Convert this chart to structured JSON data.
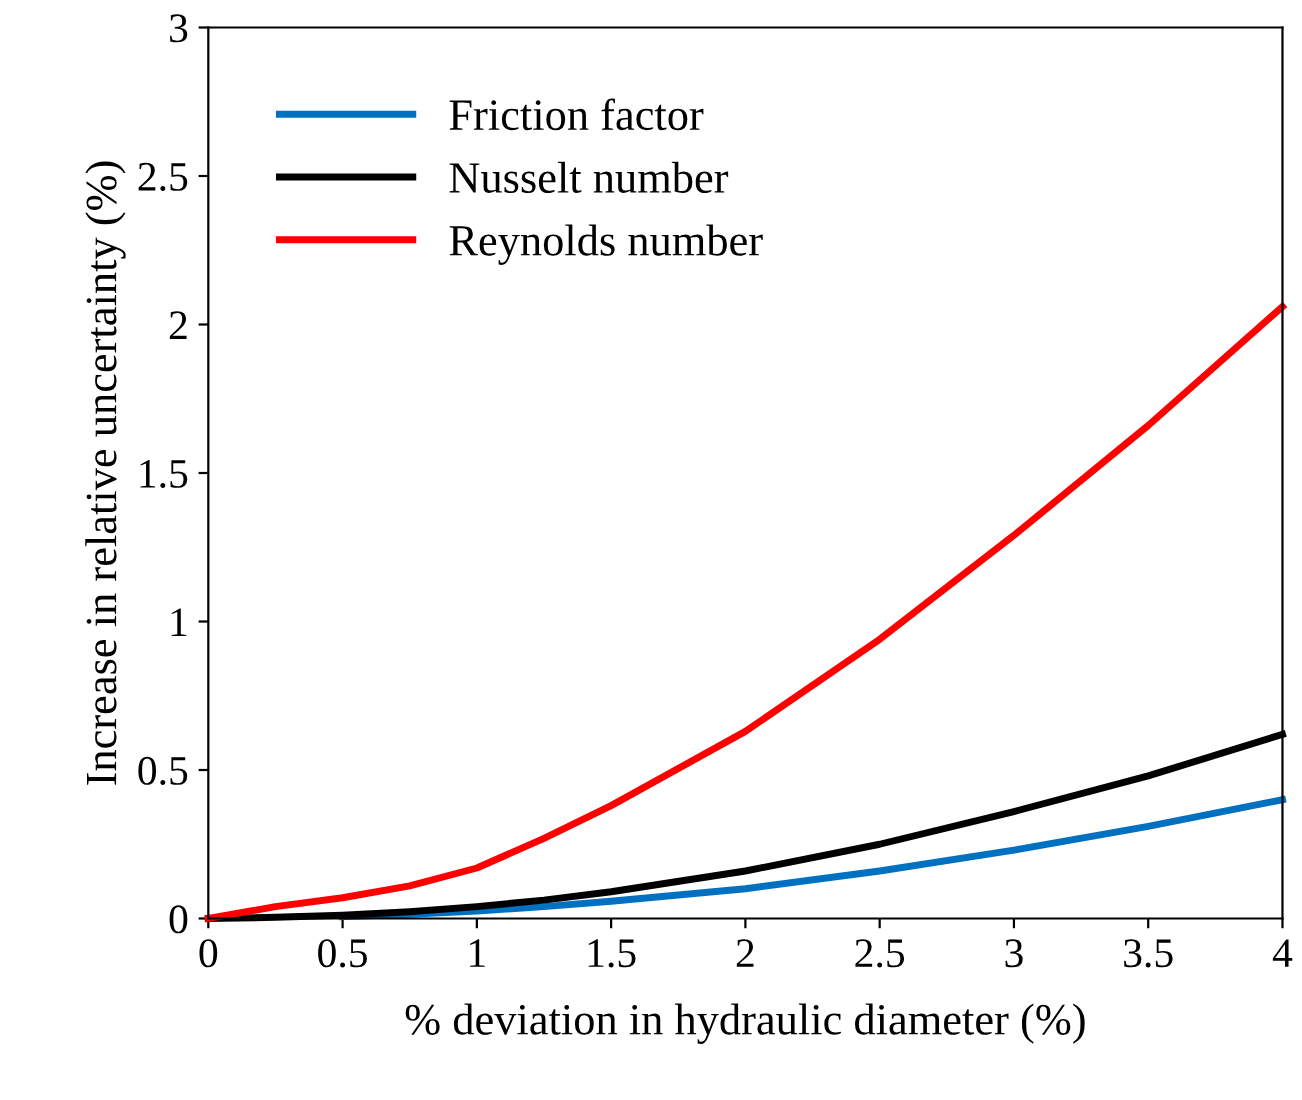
{
  "chart_data": {
    "type": "line",
    "xlabel": "% deviation in hydraulic diameter (%)",
    "ylabel": "Increase in relative uncertainty (%)",
    "x": [
      0,
      0.25,
      0.5,
      0.75,
      1,
      1.25,
      1.5,
      2,
      2.5,
      3,
      3.5,
      4
    ],
    "series": [
      {
        "name": "Friction factor",
        "color": "#0070c0",
        "values": [
          null,
          null,
          0.006,
          0.014,
          0.025,
          0.04,
          0.058,
          0.1,
          0.16,
          0.23,
          0.31,
          0.4
        ]
      },
      {
        "name": "Nusselt number",
        "color": "#000000",
        "values": [
          0,
          0.004,
          0.011,
          0.023,
          0.04,
          0.062,
          0.09,
          0.16,
          0.25,
          0.36,
          0.48,
          0.62
        ]
      },
      {
        "name": "Reynolds number",
        "color": "#ff0000",
        "values": [
          0,
          0.04,
          0.07,
          0.11,
          0.17,
          0.27,
          0.38,
          0.63,
          0.94,
          1.29,
          1.66,
          2.06
        ]
      }
    ],
    "xlim": [
      0,
      4
    ],
    "xticks": [
      0,
      0.5,
      1,
      1.5,
      2,
      2.5,
      3,
      3.5,
      4
    ],
    "ylim": [
      0,
      3
    ],
    "yticks": [
      0,
      0.5,
      1,
      1.5,
      2,
      2.5,
      3
    ],
    "legend": "top left",
    "marker": "none",
    "line_style": "solid"
  }
}
